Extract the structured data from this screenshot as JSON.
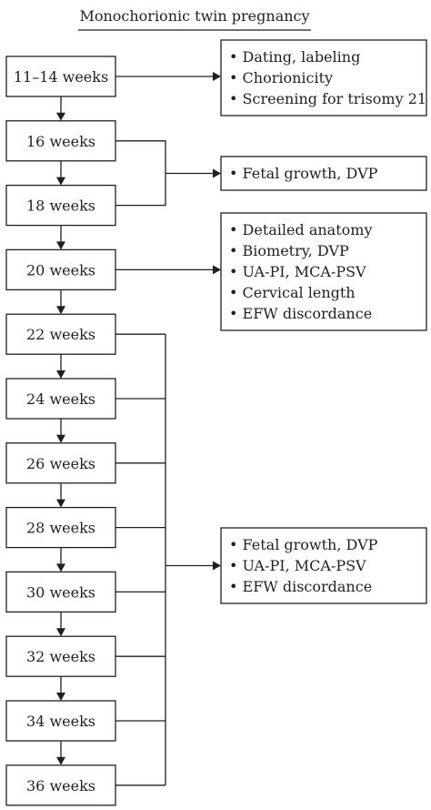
{
  "title": "Monochorionic twin pregnancy",
  "weeks": [
    "11–14 weeks",
    "16 weeks",
    "18 weeks",
    "20 weeks",
    "22 weeks",
    "24 weeks",
    "26 weeks",
    "28 weeks",
    "30 weeks",
    "32 weeks",
    "34 weeks",
    "36 weeks"
  ],
  "notes": [
    {
      "items": [
        "• Dating, labeling",
        "• Chorionicity",
        "• Screening for trisomy 21"
      ]
    },
    {
      "items": [
        "• Fetal growth, DVP"
      ]
    },
    {
      "items": [
        "• Detailed anatomy",
        "• Biometry, DVP",
        "• UA-PI, MCA-PSV",
        "• Cervical length",
        "• EFW discordance"
      ]
    },
    {
      "items": [
        "• Fetal growth, DVP",
        "• UA-PI, MCA-PSV",
        "• EFW discordance"
      ]
    }
  ],
  "colors": {
    "ink": "#231f20",
    "background": "#ffffff"
  }
}
